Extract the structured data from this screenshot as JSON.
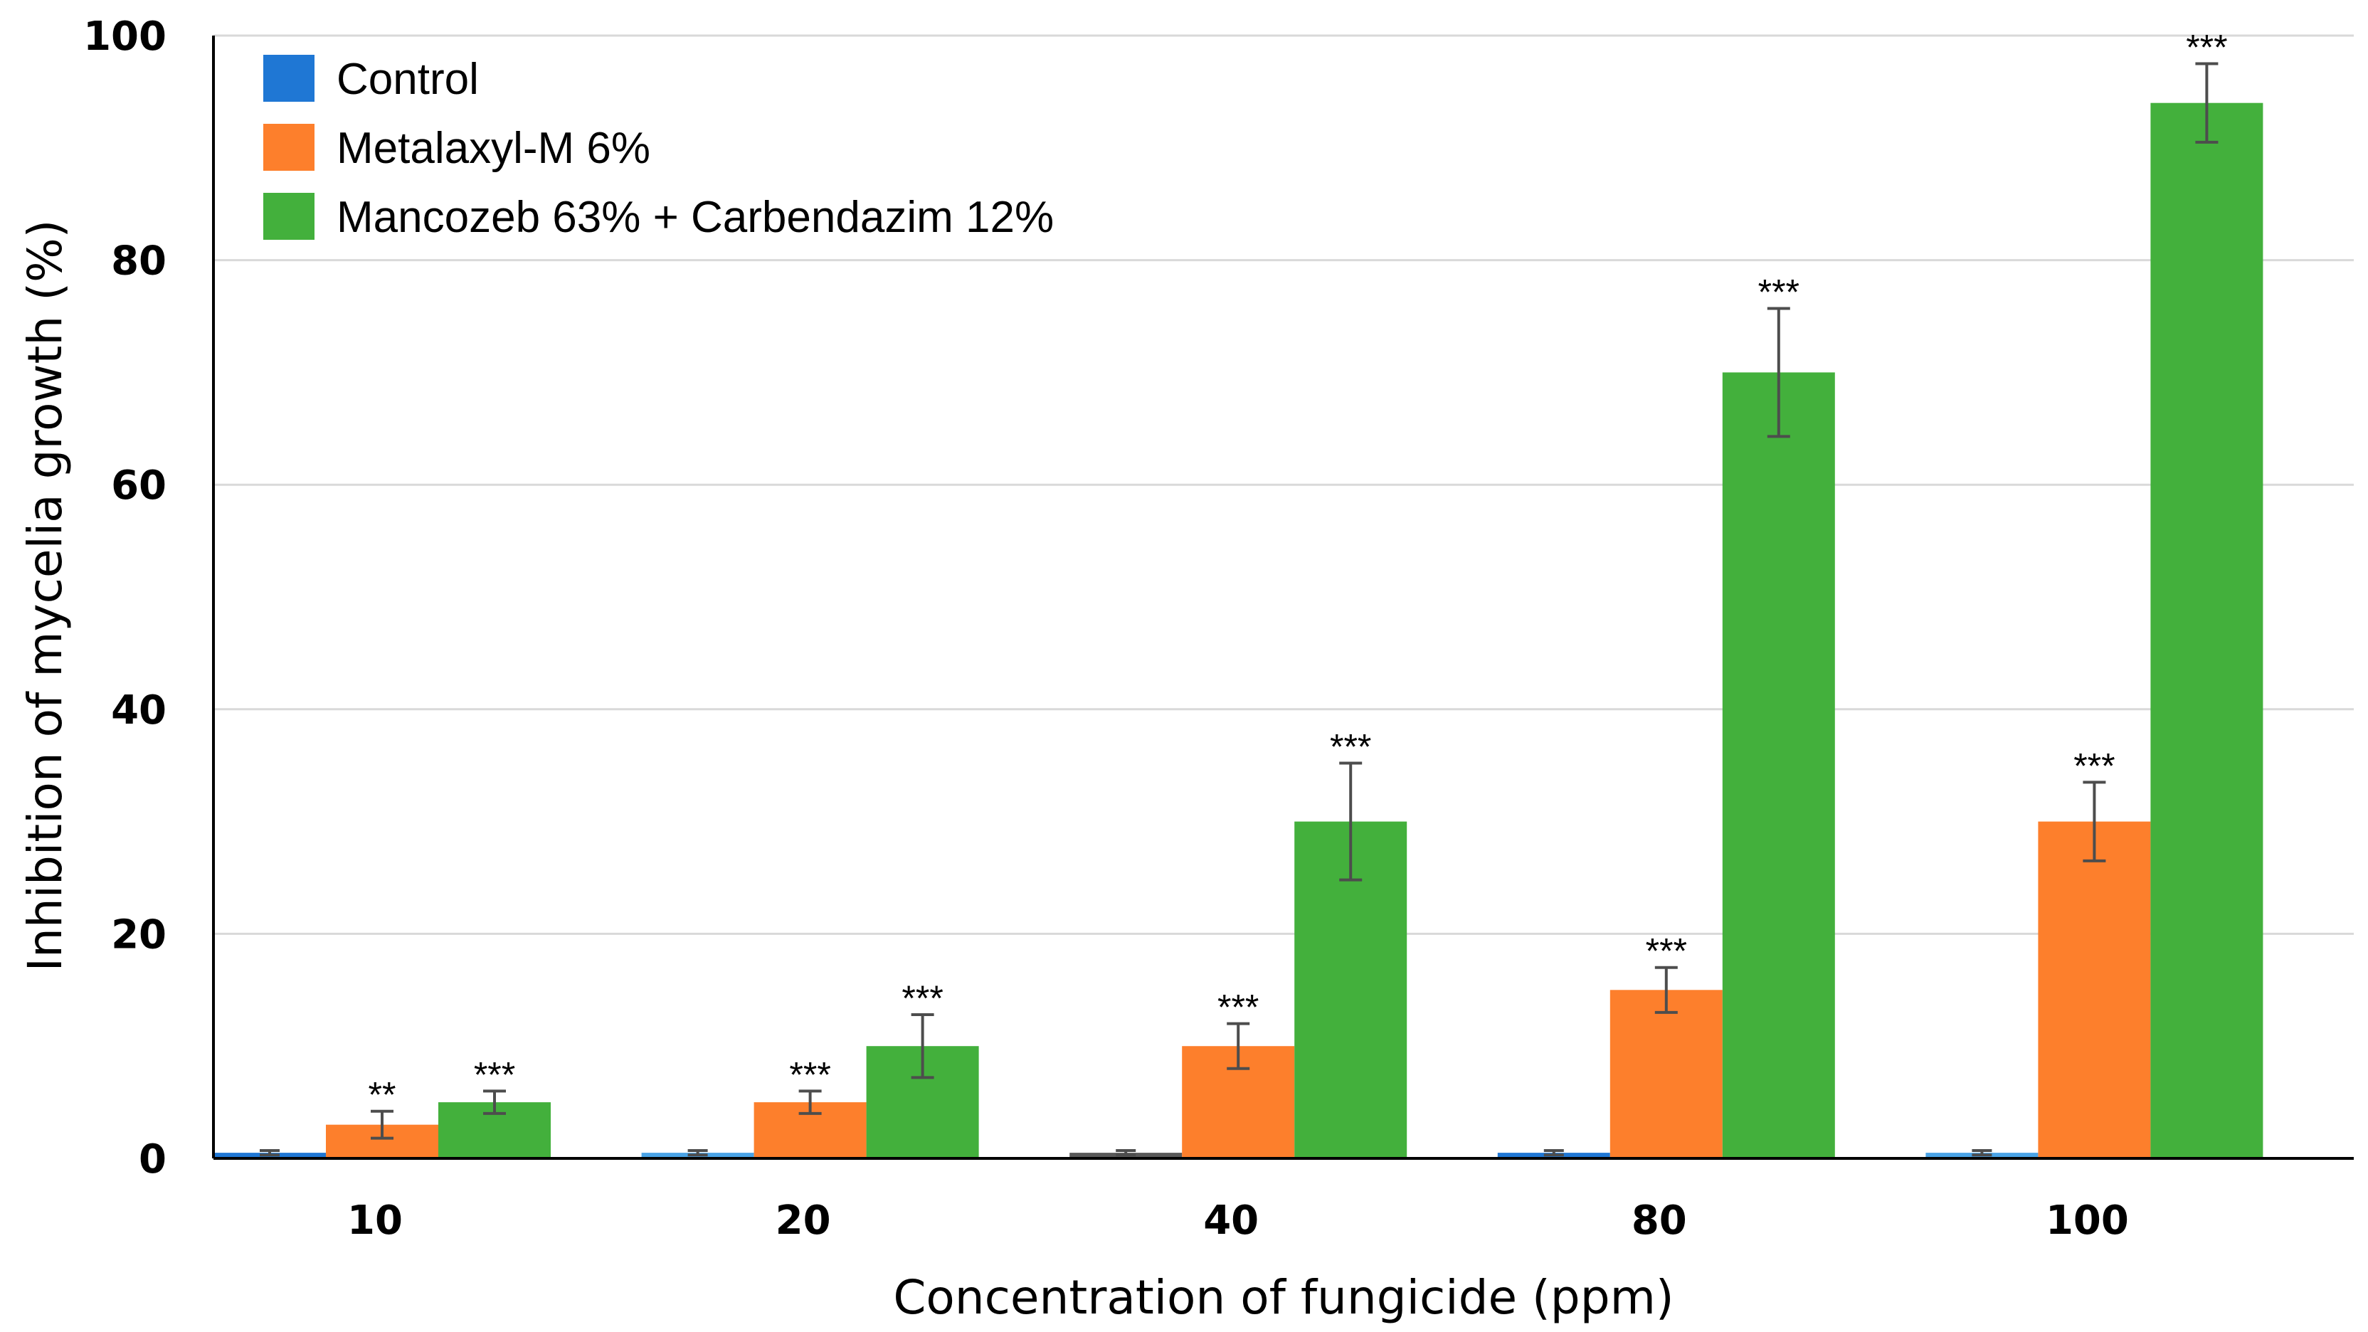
{
  "chart_data": {
    "type": "bar",
    "title": "",
    "xlabel": "Concentration of fungicide (ppm)",
    "ylabel": "Inhibition of mycelia growth (%)",
    "ylim": [
      0,
      100
    ],
    "yticks": [
      0,
      20,
      40,
      60,
      80,
      100
    ],
    "grid": true,
    "legend_position": "top-left",
    "categories": [
      "10",
      "20",
      "40",
      "80",
      "100"
    ],
    "series": [
      {
        "name": "Control",
        "color": "#1f77d4",
        "values": [
          0.5,
          0.5,
          0.5,
          0.5,
          0.5
        ],
        "errors": [
          0.2,
          0.2,
          0.2,
          0.2,
          0.2
        ],
        "significance": [
          "",
          "",
          "",
          "",
          ""
        ]
      },
      {
        "name": "Metalaxyl-M 6%",
        "color": "#fd7f2c",
        "values": [
          3,
          5,
          10,
          15,
          30
        ],
        "errors": [
          1.2,
          1.0,
          2.0,
          2.0,
          3.5
        ],
        "significance": [
          "**",
          "***",
          "***",
          "***",
          "***"
        ]
      },
      {
        "name": "Mancozeb 63% + Carbendazim 12%",
        "color": "#43b03c",
        "values": [
          5,
          10,
          30,
          70,
          94
        ],
        "errors": [
          1.0,
          2.8,
          5.2,
          5.7,
          3.5
        ],
        "significance": [
          "***",
          "***",
          "***",
          "***",
          "***"
        ]
      }
    ]
  }
}
